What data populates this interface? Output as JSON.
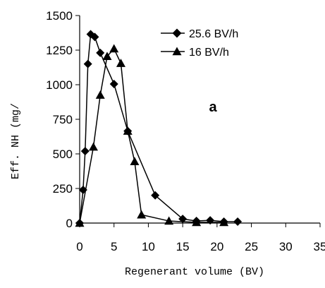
{
  "chart_data": {
    "type": "line",
    "xlabel": "Regenerant volume (BV)",
    "ylabel": "Eff. NH (mg/",
    "xlim": [
      0,
      35
    ],
    "ylim": [
      0,
      1500
    ],
    "xticks": [
      0,
      5,
      10,
      15,
      20,
      25,
      30,
      35
    ],
    "yticks": [
      0,
      250,
      500,
      750,
      1000,
      1250,
      1500
    ],
    "grid": false,
    "legend_position": "top-right",
    "annotation": "a",
    "series": [
      {
        "name": "25.6 BV/h",
        "marker": "diamond",
        "color": "#000000",
        "x": [
          0,
          0.5,
          0.8,
          1.2,
          1.6,
          2.2,
          3,
          5,
          7,
          11,
          15,
          17,
          19,
          21,
          23
        ],
        "y": [
          0,
          240,
          520,
          1150,
          1365,
          1345,
          1230,
          1005,
          665,
          200,
          30,
          15,
          20,
          10,
          10
        ]
      },
      {
        "name": "16 BV/h",
        "marker": "triangle",
        "color": "#000000",
        "x": [
          0,
          2,
          3,
          4,
          5,
          6,
          7,
          8,
          9,
          13,
          17,
          21
        ],
        "y": [
          0,
          550,
          925,
          1205,
          1260,
          1155,
          665,
          445,
          60,
          15,
          5,
          5
        ]
      }
    ]
  }
}
